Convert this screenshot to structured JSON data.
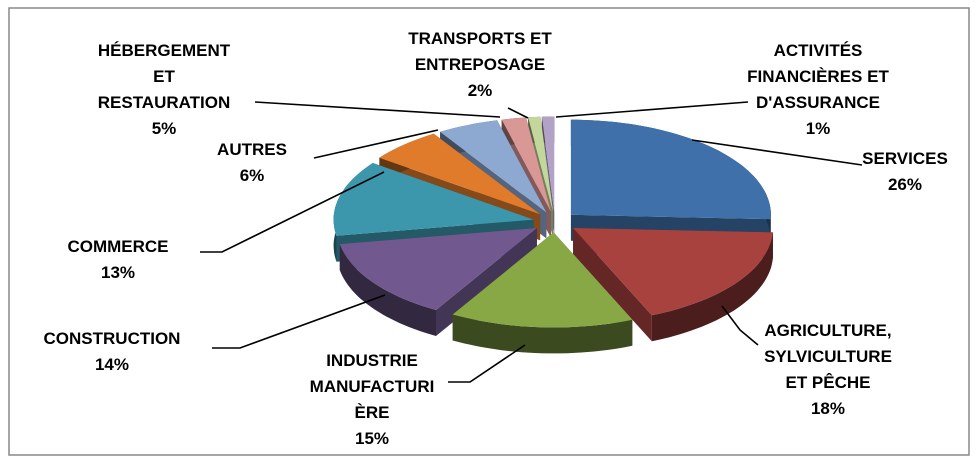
{
  "chart_data": {
    "type": "pie3d",
    "categories": [
      "SERVICES",
      "AGRICULTURE,\nSYLVICULTURE\nET PÊCHE",
      "INDUSTRIE\nMANUFACTURI\nÈRE",
      "CONSTRUCTION",
      "COMMERCE",
      "AUTRES",
      "HÉBERGEMENT\nET\nRESTAURATION",
      "TRANSPORTS ET\nENTREPOSAGE",
      null,
      "ACTIVITÉS\nFINANCIÈRES ET\nD'ASSURANCE"
    ],
    "values": [
      26,
      18,
      15,
      14,
      13,
      6,
      5,
      2,
      1,
      1
    ],
    "value_labels": [
      "26%",
      "18%",
      "15%",
      "14%",
      "13%",
      "6%",
      "5%",
      "2%",
      null,
      "1%"
    ],
    "colors": [
      "#3f70a9",
      "#a8423f",
      "#87a845",
      "#71598f",
      "#3c97ad",
      "#e07b2c",
      "#8ea9d1",
      "#d99795",
      "#c3d69b",
      "#b3a2c7"
    ]
  }
}
